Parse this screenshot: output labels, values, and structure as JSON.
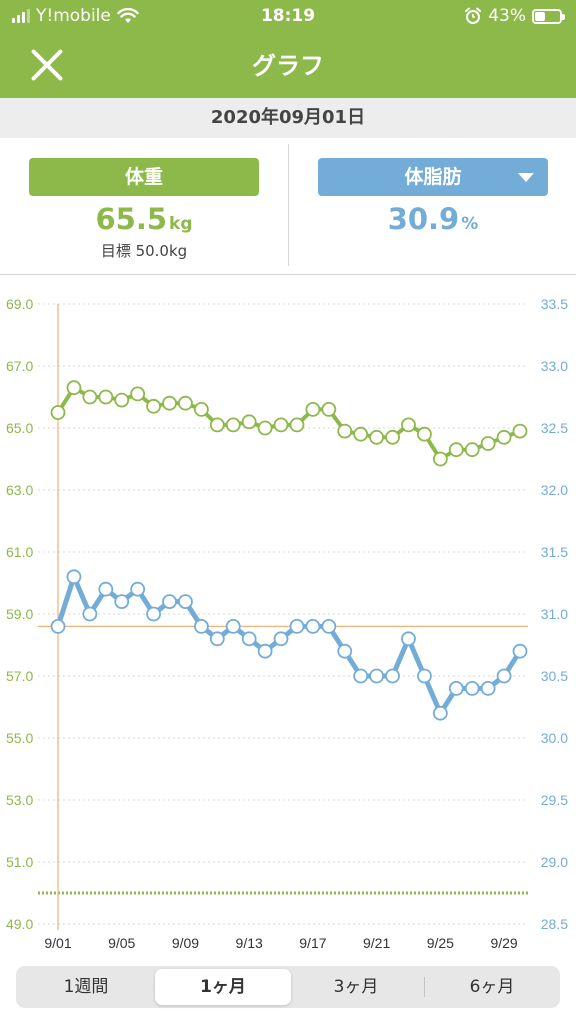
{
  "status_bar": {
    "carrier": "Y!mobile",
    "time": "18:19",
    "battery": "43%",
    "battery_level": 0.43
  },
  "header": {
    "title": "グラフ"
  },
  "date": "2020年09月01日",
  "metrics": {
    "weight": {
      "label": "体重",
      "value": "65.5",
      "unit": "kg",
      "goal_text": "目標 50.0kg"
    },
    "body_fat": {
      "label": "体脂肪",
      "value": "30.9",
      "unit": "%"
    }
  },
  "colors": {
    "accent_green": "#8db84a",
    "accent_blue": "#74acd8",
    "cursor_line": "#f0b27a"
  },
  "tabs": [
    {
      "label": "1週間",
      "active": false
    },
    {
      "label": "1ヶ月",
      "active": true
    },
    {
      "label": "3ヶ月",
      "active": false
    },
    {
      "label": "6ヶ月",
      "active": false
    }
  ],
  "chart_data": {
    "type": "line",
    "x": [
      1,
      2,
      3,
      4,
      5,
      6,
      7,
      8,
      9,
      10,
      11,
      12,
      13,
      14,
      15,
      16,
      17,
      18,
      19,
      20,
      21,
      22,
      23,
      24,
      25,
      26,
      27,
      28,
      29,
      30
    ],
    "x_tick_labels": [
      {
        "day": 1,
        "label": "9/01"
      },
      {
        "day": 5,
        "label": "9/05"
      },
      {
        "day": 9,
        "label": "9/09"
      },
      {
        "day": 13,
        "label": "9/13"
      },
      {
        "day": 17,
        "label": "9/17"
      },
      {
        "day": 21,
        "label": "9/21"
      },
      {
        "day": 25,
        "label": "9/25"
      },
      {
        "day": 29,
        "label": "9/29"
      }
    ],
    "y_left": {
      "ylim": [
        49.0,
        69.0
      ],
      "ticks": [
        "49.0",
        "51.0",
        "53.0",
        "55.0",
        "57.0",
        "59.0",
        "61.0",
        "63.0",
        "65.0",
        "67.0",
        "69.0"
      ]
    },
    "y_right": {
      "ylim": [
        28.5,
        33.5
      ],
      "ticks": [
        "28.5",
        "29.0",
        "29.5",
        "30.0",
        "30.5",
        "31.0",
        "31.5",
        "32.0",
        "32.5",
        "33.0",
        "33.5"
      ]
    },
    "grid": "horizontal",
    "goal_line": 50.0,
    "selected_day": 1,
    "series": [
      {
        "axis": "left",
        "color": "#8db84a",
        "values": [
          65.5,
          66.3,
          66.0,
          66.0,
          65.9,
          66.1,
          65.7,
          65.8,
          65.8,
          65.6,
          65.1,
          65.1,
          65.2,
          65.0,
          65.1,
          65.1,
          65.6,
          65.6,
          64.9,
          64.8,
          64.7,
          64.7,
          65.1,
          64.8,
          64.0,
          64.3,
          64.3,
          64.5,
          64.7,
          64.9
        ]
      },
      {
        "axis": "right",
        "color": "#74acd8",
        "values": [
          30.9,
          31.3,
          31.0,
          31.2,
          31.1,
          31.2,
          31.0,
          31.1,
          31.1,
          30.9,
          30.8,
          30.9,
          30.8,
          30.7,
          30.8,
          30.9,
          30.9,
          30.9,
          30.7,
          30.5,
          30.5,
          30.5,
          30.8,
          30.5,
          30.2,
          30.4,
          30.4,
          30.4,
          30.5,
          30.7
        ]
      }
    ]
  }
}
